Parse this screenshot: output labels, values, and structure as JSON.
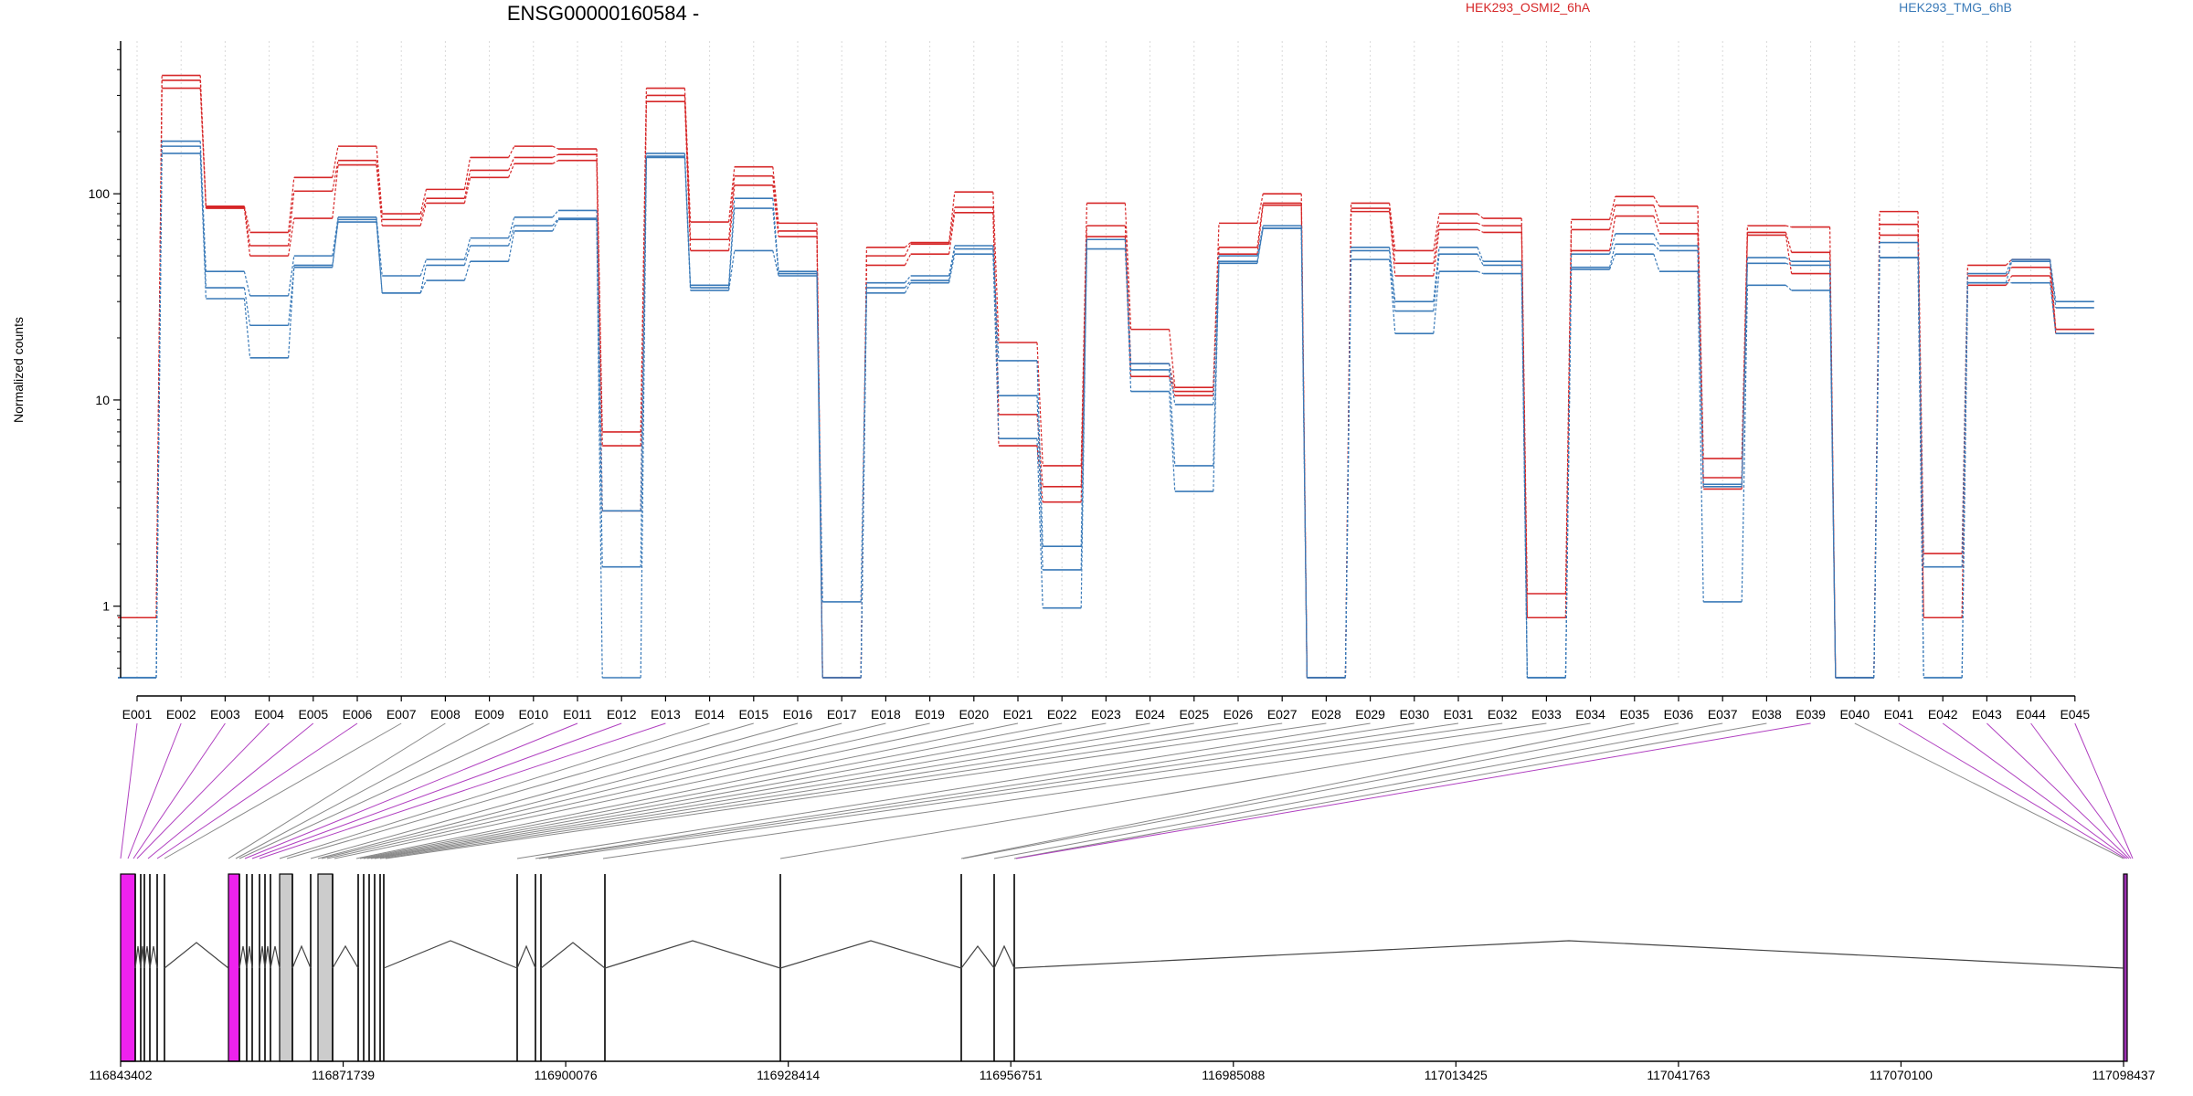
{
  "chart_data": {
    "type": "line",
    "title": "ENSG00000160584 -",
    "ylabel": "Normalized counts",
    "yscale": "log",
    "ylim": [
      0.45,
      550
    ],
    "yticks": [
      "1",
      "10",
      "100"
    ],
    "legend": {
      "placement": "top",
      "entries": [
        {
          "label": "HEK293_OSMI2_6hA",
          "color": "#d62728"
        },
        {
          "label": "HEK293_TMG_6hB",
          "color": "#3a7ab8"
        }
      ]
    },
    "categories": [
      "E001",
      "E002",
      "E003",
      "E004",
      "E005",
      "E006",
      "E007",
      "E008",
      "E009",
      "E010",
      "E011",
      "E012",
      "E013",
      "E014",
      "E015",
      "E016",
      "E017",
      "E018",
      "E019",
      "E020",
      "E021",
      "E022",
      "E023",
      "E024",
      "E025",
      "E026",
      "E027",
      "E028",
      "E029",
      "E030",
      "E031",
      "E032",
      "E033",
      "E034",
      "E035",
      "E036",
      "E037",
      "E038",
      "E039",
      "E040",
      "E041",
      "E042",
      "E043",
      "E044",
      "E045"
    ],
    "series": [
      {
        "group": "HEK293_OSMI2_6hA",
        "color": "#d62728",
        "values": [
          0.88,
          375,
          87,
          65,
          120,
          170,
          80,
          105,
          150,
          170,
          165,
          7,
          325,
          73,
          135,
          72,
          0.45,
          55,
          58,
          102,
          19,
          4.8,
          90,
          22,
          11.5,
          72,
          100,
          0.45,
          90,
          53,
          80,
          76,
          1.15,
          75,
          97,
          87,
          5.2,
          70,
          69,
          0.45,
          82,
          1.8,
          45,
          48,
          22
        ]
      },
      {
        "group": "HEK293_OSMI2_6hA",
        "color": "#d62728",
        "values": [
          0.88,
          355,
          86,
          56,
          103,
          145,
          75,
          95,
          130,
          150,
          155,
          6,
          300,
          60,
          122,
          66,
          0.45,
          50,
          57,
          86,
          8.5,
          3.8,
          70,
          15,
          11,
          55,
          90,
          0.45,
          85,
          46,
          72,
          70,
          0.88,
          67,
          88,
          72,
          4.2,
          65,
          52,
          0.45,
          71,
          0.88,
          40,
          44,
          22
        ]
      },
      {
        "group": "HEK293_OSMI2_6hA",
        "color": "#d62728",
        "values": [
          0.88,
          325,
          85,
          50,
          76,
          138,
          70,
          90,
          120,
          140,
          145,
          2.9,
          280,
          53,
          110,
          62,
          0.45,
          45,
          51,
          81,
          6,
          3.2,
          62,
          13,
          10.5,
          51,
          88,
          0.45,
          82,
          40,
          67,
          65,
          0.88,
          53,
          78,
          64,
          3.7,
          63,
          41,
          0.45,
          63,
          0.88,
          36,
          40,
          21
        ]
      },
      {
        "group": "HEK293_TMG_6hB",
        "color": "#3a7ab8",
        "values": [
          0.45,
          180,
          42,
          32,
          50,
          77,
          40,
          48,
          61,
          77,
          83,
          2.9,
          157,
          36,
          95,
          42,
          1.05,
          37,
          40,
          56,
          15.5,
          1.95,
          60,
          15,
          9.5,
          50,
          70,
          0.45,
          55,
          30,
          55,
          47,
          0.45,
          51,
          64,
          56,
          3.9,
          49,
          47,
          0.45,
          58,
          1.55,
          41,
          48,
          30
        ]
      },
      {
        "group": "HEK293_TMG_6hB",
        "color": "#3a7ab8",
        "values": [
          0.45,
          170,
          35,
          23,
          44,
          75,
          33,
          45,
          56,
          70,
          76,
          1.55,
          152,
          35,
          85,
          41,
          0.45,
          35,
          38,
          54,
          10.5,
          1.5,
          54,
          14,
          4.8,
          47,
          68,
          0.45,
          53,
          27,
          51,
          45,
          0.45,
          44,
          57,
          53,
          3.8,
          46,
          45,
          0.45,
          49,
          0.45,
          37,
          47,
          28
        ]
      },
      {
        "group": "HEK293_TMG_6hB",
        "color": "#3a7ab8",
        "values": [
          0.45,
          157,
          31,
          16,
          45,
          73,
          33,
          38,
          47,
          66,
          75,
          0.45,
          150,
          34,
          53,
          40,
          0.45,
          33,
          37,
          51,
          6.5,
          0.98,
          60,
          11,
          3.6,
          46,
          68,
          0.45,
          48,
          21,
          42,
          41,
          0.45,
          43,
          51,
          42,
          1.05,
          36,
          34,
          0.45,
          49,
          0.45,
          37,
          37,
          21
        ]
      }
    ],
    "gene_model": {
      "coordinate_ticks": [
        "116843402",
        "116871739",
        "116900076",
        "116928414",
        "116956751",
        "116985088",
        "117013425",
        "117041763",
        "117070100",
        "117098437"
      ]
    }
  }
}
